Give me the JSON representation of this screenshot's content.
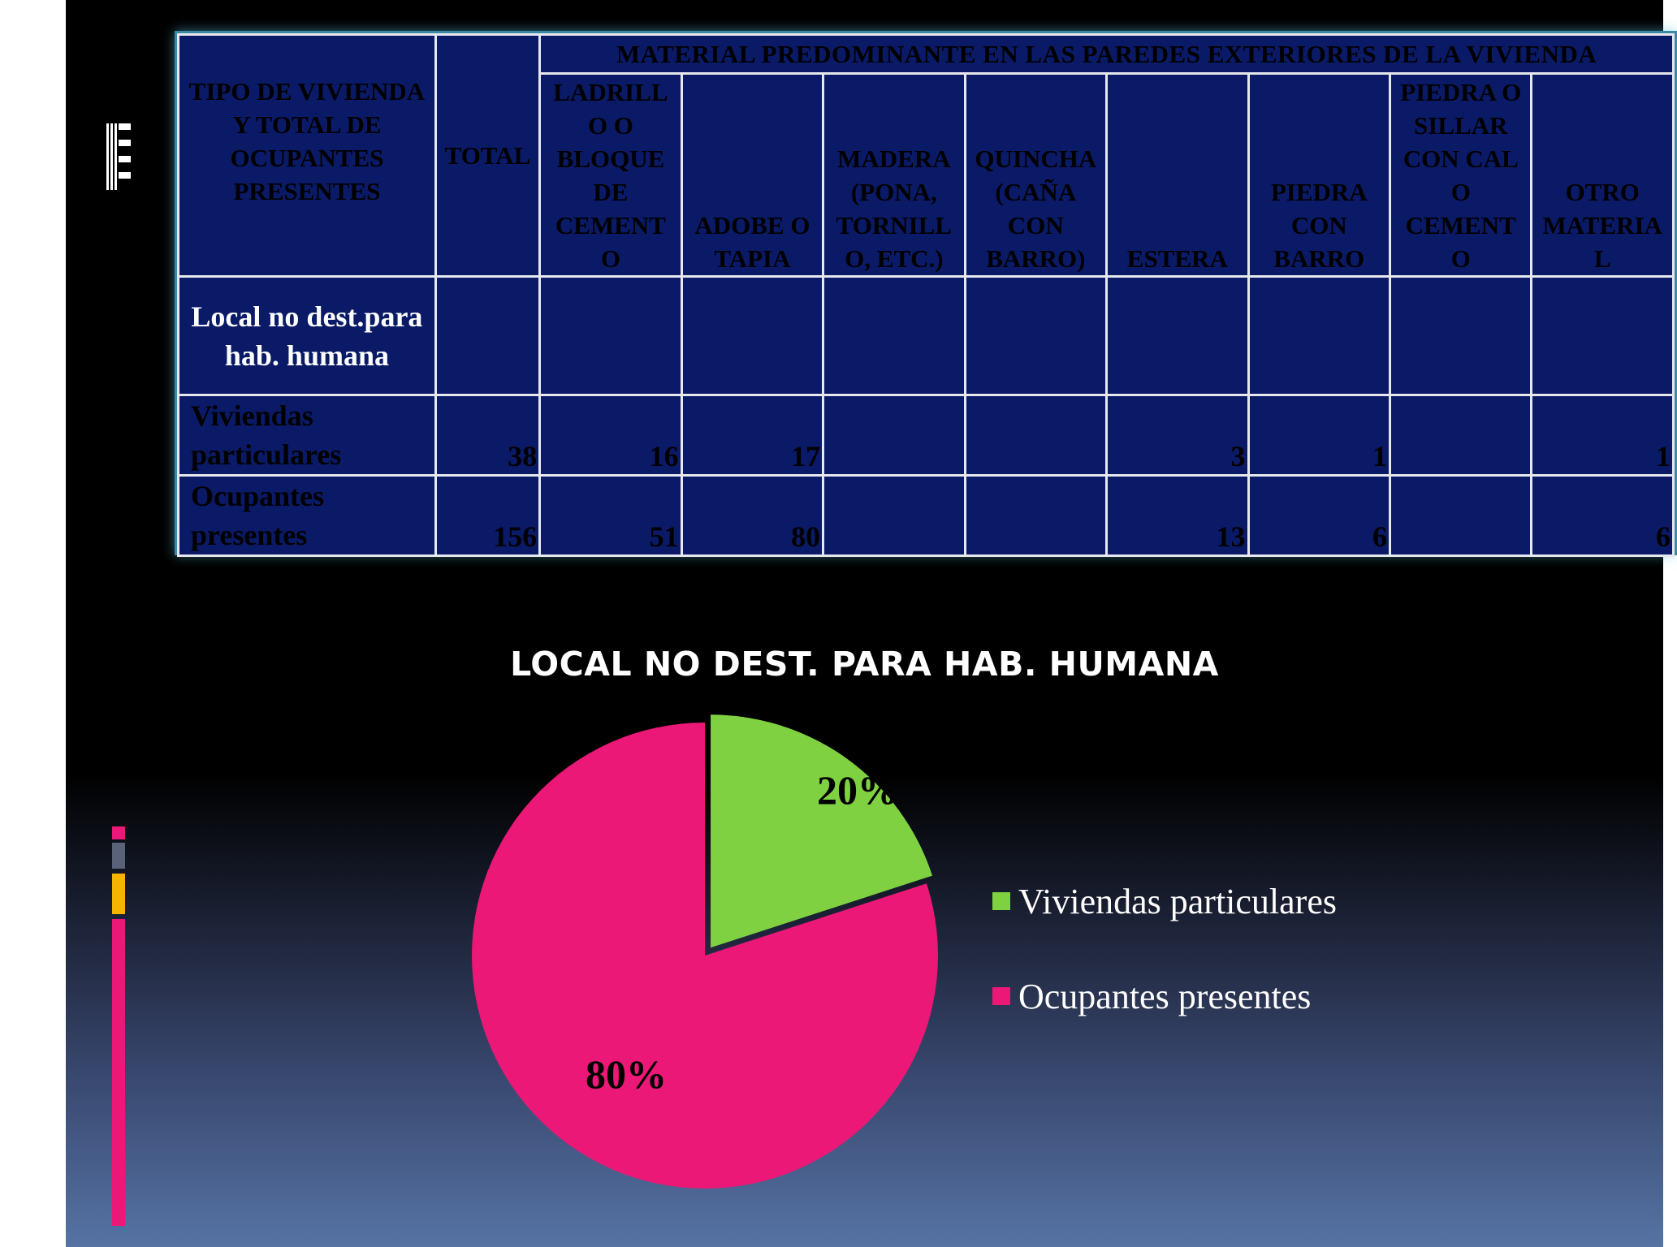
{
  "table": {
    "header_tipo": "TIPO DE VIVIENDA Y TOTAL DE OCUPANTES PRESENTES",
    "header_total": "TOTAL",
    "header_material": "MATERIAL PREDOMINANTE EN LAS PAREDES EXTERIORES DE LA VIVIENDA",
    "columns": [
      "LADRILL\nO O\nBLOQUE\nDE\nCEMENT\nO",
      "ADOBE O\nTAPIA",
      "MADERA\n(PONA,\nTORNILL\nO, ETC.)",
      "QUINCHA\n(CAÑA\nCON\nBARRO)",
      "ESTERA",
      "PIEDRA\nCON\nBARRO",
      "PIEDRA O\nSILLAR\nCON CAL\nO\nCEMENT\nO",
      "OTRO\nMATERIA\nL"
    ],
    "section_label": "Local no dest.para hab. humana",
    "rows": [
      {
        "label": "Viviendas particulares",
        "total": "38",
        "values": [
          "16",
          "17",
          "",
          "",
          "3",
          "1",
          "",
          "1"
        ]
      },
      {
        "label": "Ocupantes presentes",
        "total": "156",
        "values": [
          "51",
          "80",
          "",
          "",
          "13",
          "6",
          "",
          "6"
        ]
      }
    ]
  },
  "chart_data": {
    "type": "pie",
    "title": "LOCAL NO DEST. PARA HAB. HUMANA",
    "categories": [
      "Viviendas particulares",
      "Ocupantes presentes"
    ],
    "values": [
      20,
      80
    ],
    "labels": [
      "20%",
      "80%"
    ],
    "colors": [
      "#7fd142",
      "#ec1878"
    ],
    "legend": "right",
    "exploded_slice": "Viviendas particulares"
  },
  "theme": {
    "table_bg": "#0a1a66",
    "deco_colors": [
      "#ec1878",
      "#5a6278",
      "#f5b400",
      "#ec1878"
    ]
  }
}
